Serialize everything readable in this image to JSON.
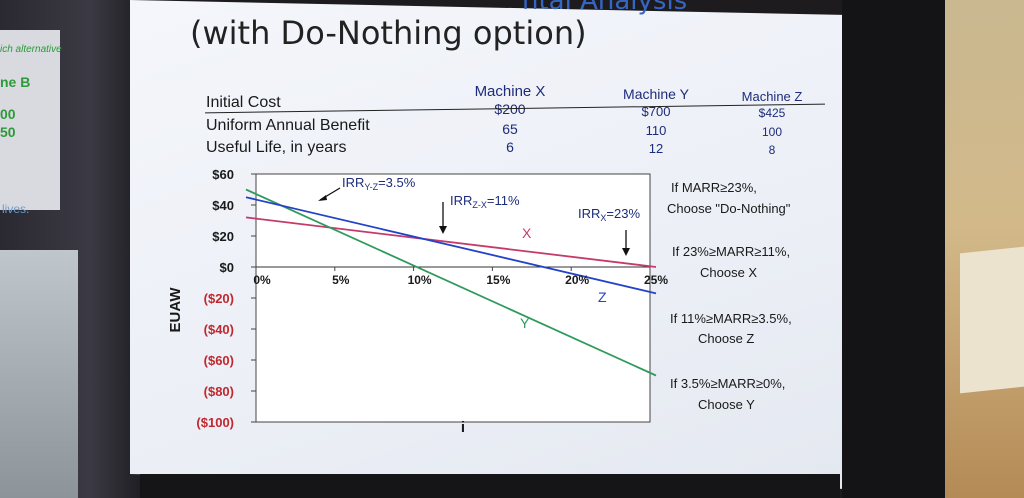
{
  "slide": {
    "title": "(with Do-Nothing option)",
    "title_partial_top": "ntal Analysis"
  },
  "left_edge": {
    "top_text": "ich alternative",
    "b_text": "ne B",
    "value1": "00",
    "value2": "50",
    "lives_text": "lives."
  },
  "table": {
    "rows": [
      "Initial Cost",
      "Uniform Annual Benefit",
      "Useful Life, in years"
    ],
    "machines": [
      {
        "name": "Machine X",
        "values": [
          "$200",
          "65",
          "6"
        ]
      },
      {
        "name": "Machine Y",
        "values": [
          "$700",
          "110",
          "12"
        ]
      },
      {
        "name": "Machine Z",
        "values": [
          "$425",
          "100",
          "8"
        ]
      }
    ]
  },
  "chart_data": {
    "type": "line",
    "xlabel": "i",
    "ylabel": "EUAW",
    "x_ticks": [
      "0%",
      "5%",
      "10%",
      "15%",
      "20%",
      "25%"
    ],
    "y_ticks": [
      "$60",
      "$40",
      "$20",
      "$0",
      "($20)",
      "($40)",
      "($60)",
      "($80)",
      "($100)"
    ],
    "xlim": [
      0,
      25
    ],
    "ylim": [
      -100,
      60
    ],
    "series": [
      {
        "name": "X",
        "color": "#c43a6a",
        "x": [
          0,
          25
        ],
        "y": [
          32,
          0
        ]
      },
      {
        "name": "Y",
        "color": "#2f9a5c",
        "x": [
          0,
          25
        ],
        "y": [
          50,
          -70
        ]
      },
      {
        "name": "Z",
        "color": "#2442c8",
        "x": [
          0,
          25
        ],
        "y": [
          45,
          -17
        ]
      }
    ],
    "annotations": [
      {
        "text": "IRRY-Z=3.5%",
        "label": "IRR",
        "sub": "Y-Z",
        "value": "=3.5%"
      },
      {
        "text": "IRRZ-X=11%",
        "label": "IRR",
        "sub": "Z-X",
        "value": "=11%"
      },
      {
        "text": "IRRX=23%",
        "label": "IRR",
        "sub": "X",
        "value": "=23%"
      }
    ],
    "line_labels": [
      "X",
      "Y",
      "Z"
    ]
  },
  "decisions": [
    {
      "condition": "If MARR≥23%,",
      "choice": "Choose \"Do-Nothing\""
    },
    {
      "condition": "If 23%≥MARR≥11%,",
      "choice": "Choose X"
    },
    {
      "condition": "If 11%≥MARR≥3.5%,",
      "choice": "Choose Z"
    },
    {
      "condition": "If 3.5%≥MARR≥0%,",
      "choice": "Choose Y"
    }
  ],
  "colors": {
    "accent_blue": "#1d2c7a",
    "line_x": "#c43a6a",
    "line_y": "#2f9a5c",
    "line_z": "#2442c8",
    "axis_red": "#c0282e"
  }
}
